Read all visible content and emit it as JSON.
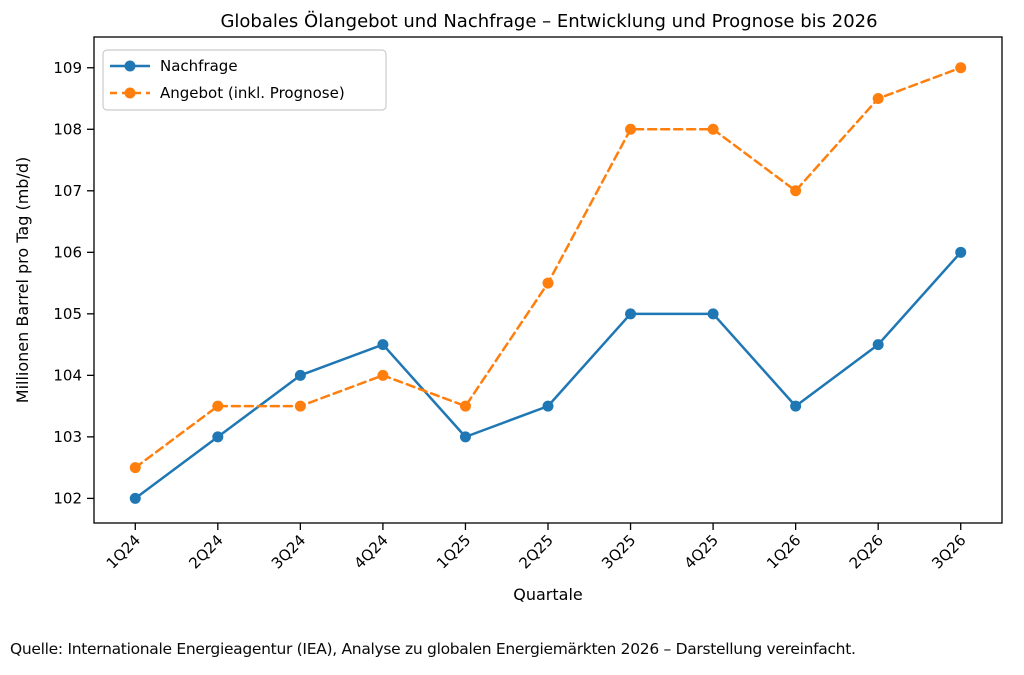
{
  "title": "Globales Ölangebot und Nachfrage – Entwicklung und Prognose bis 2026",
  "caption": "Quelle: Internationale Energieagentur (IEA), Analyse zu globalen Energiemärkten 2026 – Darstellung vereinfacht.",
  "colors": {
    "demand_blue": "#1f77b4",
    "supply_orange": "#ff7f0e",
    "axis": "#000000",
    "legend_border": "#cccccc",
    "background": "#ffffff"
  },
  "legend": {
    "position": "upper left"
  },
  "chart_data": {
    "type": "line",
    "title": "Globales Ölangebot und Nachfrage – Entwicklung und Prognose bis 2026",
    "categories": [
      "1Q24",
      "2Q24",
      "3Q24",
      "4Q24",
      "1Q25",
      "2Q25",
      "3Q25",
      "4Q25",
      "1Q26",
      "2Q26",
      "3Q26"
    ],
    "series": [
      {
        "name": "Nachfrage",
        "color": "#1f77b4",
        "line_style": "solid",
        "marker": "circle",
        "values": [
          102.0,
          103.0,
          104.0,
          104.5,
          103.0,
          103.5,
          105.0,
          105.0,
          103.5,
          104.5,
          106.0
        ]
      },
      {
        "name": "Angebot (inkl. Prognose)",
        "color": "#ff7f0e",
        "line_style": "dashed",
        "marker": "circle",
        "values": [
          102.5,
          103.5,
          103.5,
          104.0,
          103.5,
          105.5,
          108.0,
          108.0,
          107.0,
          108.5,
          109.0
        ]
      }
    ],
    "xlabel": "Quartale",
    "ylabel": "Millionen Barrel pro Tag (mb/d)",
    "yticks": [
      102,
      103,
      104,
      105,
      106,
      107,
      108,
      109
    ],
    "ylim": [
      101.6,
      109.5
    ],
    "grid": false,
    "legend_position": "upper left"
  }
}
